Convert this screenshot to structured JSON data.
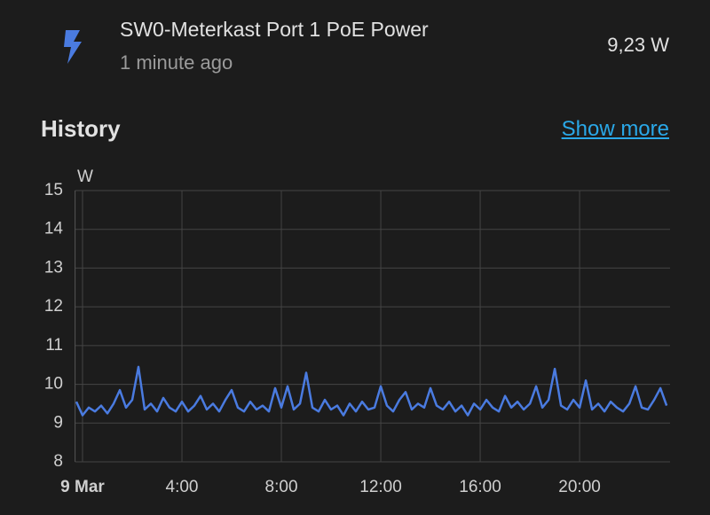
{
  "header": {
    "title": "SW0-Meterkast Port 1 PoE Power",
    "subtitle": "1 minute ago",
    "state": "9,23 W"
  },
  "history": {
    "title": "History",
    "link": "Show more"
  },
  "chart_data": {
    "type": "line",
    "y_unit_label": "W",
    "x": [
      -0.25,
      0,
      0.25,
      0.5,
      0.75,
      1,
      1.25,
      1.5,
      1.75,
      2,
      2.25,
      2.5,
      2.75,
      3,
      3.25,
      3.5,
      3.75,
      4,
      4.25,
      4.5,
      4.75,
      5,
      5.25,
      5.5,
      5.75,
      6,
      6.25,
      6.5,
      6.75,
      7,
      7.25,
      7.5,
      7.75,
      8,
      8.25,
      8.5,
      8.75,
      9,
      9.25,
      9.5,
      9.75,
      10,
      10.25,
      10.5,
      10.75,
      11,
      11.25,
      11.5,
      11.75,
      12,
      12.25,
      12.5,
      12.75,
      13,
      13.25,
      13.5,
      13.75,
      14,
      14.25,
      14.5,
      14.75,
      15,
      15.25,
      15.5,
      15.75,
      16,
      16.25,
      16.5,
      16.75,
      17,
      17.25,
      17.5,
      17.75,
      18,
      18.25,
      18.5,
      18.75,
      19,
      19.25,
      19.5,
      19.75,
      20,
      20.25,
      20.5,
      20.75,
      21,
      21.25,
      21.5,
      21.75,
      22,
      22.25,
      22.5,
      22.75,
      23,
      23.25,
      23.5
    ],
    "series": [
      {
        "color": "#4a7be0",
        "values": [
          9.55,
          9.2,
          9.4,
          9.3,
          9.45,
          9.25,
          9.5,
          9.85,
          9.4,
          9.6,
          10.45,
          9.35,
          9.5,
          9.3,
          9.65,
          9.4,
          9.3,
          9.55,
          9.3,
          9.45,
          9.7,
          9.35,
          9.5,
          9.3,
          9.6,
          9.85,
          9.4,
          9.3,
          9.55,
          9.35,
          9.45,
          9.3,
          9.9,
          9.4,
          9.95,
          9.35,
          9.5,
          10.3,
          9.4,
          9.3,
          9.6,
          9.35,
          9.45,
          9.2,
          9.5,
          9.3,
          9.55,
          9.35,
          9.4,
          9.95,
          9.45,
          9.3,
          9.6,
          9.8,
          9.35,
          9.5,
          9.4,
          9.9,
          9.45,
          9.35,
          9.55,
          9.3,
          9.45,
          9.2,
          9.5,
          9.35,
          9.6,
          9.4,
          9.3,
          9.7,
          9.4,
          9.55,
          9.35,
          9.5,
          9.95,
          9.4,
          9.6,
          10.4,
          9.45,
          9.35,
          9.6,
          9.4,
          10.1,
          9.35,
          9.5,
          9.3,
          9.55,
          9.4,
          9.3,
          9.5,
          9.95,
          9.4,
          9.35,
          9.6,
          9.9,
          9.45
        ]
      }
    ],
    "xlim": [
      -0.3,
      23.64
    ],
    "ylim": [
      8,
      15
    ],
    "xticks": [
      {
        "value": 0,
        "label": "9 Mar"
      },
      {
        "value": 4,
        "label": "4:00"
      },
      {
        "value": 8,
        "label": "8:00"
      },
      {
        "value": 12,
        "label": "12:00"
      },
      {
        "value": 16,
        "label": "16:00"
      },
      {
        "value": 20,
        "label": "20:00"
      }
    ],
    "yticks": [
      8,
      9,
      10,
      11,
      12,
      13,
      14,
      15
    ],
    "grid": true
  }
}
